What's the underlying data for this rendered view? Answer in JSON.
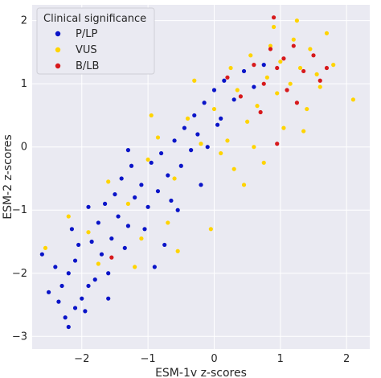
{
  "chart_data": {
    "type": "scatter",
    "title": "",
    "xlabel": "ESM-1v z-scores",
    "ylabel": "ESM-2 z-scores",
    "xlim": [
      -2.75,
      2.35
    ],
    "ylim": [
      -3.2,
      2.25
    ],
    "xticks": [
      -2,
      -1,
      0,
      1,
      2
    ],
    "yticks": [
      -3,
      -2,
      -1,
      0,
      1,
      2
    ],
    "xtick_labels": [
      "−2",
      "−1",
      "0",
      "1",
      "2"
    ],
    "ytick_labels": [
      "−3",
      "−2",
      "−1",
      "0",
      "1",
      "2"
    ],
    "grid": true,
    "background": "#eaeaf2",
    "legend": {
      "title": "Clinical significance",
      "placement": "top-left",
      "entries": [
        "P/LP",
        "VUS",
        "B/LB"
      ]
    },
    "series": [
      {
        "name": "P/LP",
        "color": "#0a14c8",
        "points": [
          [
            -2.5,
            -2.3
          ],
          [
            -2.35,
            -2.45
          ],
          [
            -2.25,
            -2.7
          ],
          [
            -2.2,
            -2.85
          ],
          [
            -2.1,
            -2.55
          ],
          [
            -2.3,
            -2.2
          ],
          [
            -2.2,
            -2.0
          ],
          [
            -2.4,
            -1.9
          ],
          [
            -2.1,
            -1.8
          ],
          [
            -2.0,
            -2.4
          ],
          [
            -1.9,
            -2.2
          ],
          [
            -1.95,
            -2.6
          ],
          [
            -1.8,
            -2.1
          ],
          [
            -1.7,
            -1.7
          ],
          [
            -1.6,
            -2.0
          ],
          [
            -1.85,
            -1.5
          ],
          [
            -2.05,
            -1.55
          ],
          [
            -1.75,
            -1.2
          ],
          [
            -1.55,
            -1.45
          ],
          [
            -1.65,
            -0.9
          ],
          [
            -1.45,
            -1.1
          ],
          [
            -1.35,
            -1.6
          ],
          [
            -1.3,
            -1.25
          ],
          [
            -1.2,
            -0.8
          ],
          [
            -1.5,
            -0.75
          ],
          [
            -1.4,
            -0.5
          ],
          [
            -1.25,
            -0.3
          ],
          [
            -1.1,
            -0.6
          ],
          [
            -1.0,
            -0.95
          ],
          [
            -0.95,
            -0.25
          ],
          [
            -1.05,
            -1.3
          ],
          [
            -0.85,
            -0.7
          ],
          [
            -0.8,
            -0.1
          ],
          [
            -0.7,
            -0.45
          ],
          [
            -0.6,
            0.1
          ],
          [
            -0.65,
            -0.85
          ],
          [
            -0.5,
            -0.3
          ],
          [
            -0.45,
            0.3
          ],
          [
            -0.35,
            -0.05
          ],
          [
            -0.3,
            0.5
          ],
          [
            -0.25,
            0.2
          ],
          [
            -0.15,
            0.7
          ],
          [
            -0.1,
            0.0
          ],
          [
            0.0,
            0.9
          ],
          [
            0.05,
            0.35
          ],
          [
            0.15,
            1.05
          ],
          [
            0.3,
            0.75
          ],
          [
            0.45,
            1.2
          ],
          [
            0.6,
            0.95
          ],
          [
            0.75,
            1.3
          ],
          [
            -0.75,
            -1.55
          ],
          [
            -0.55,
            -1.0
          ],
          [
            -0.9,
            -1.9
          ],
          [
            -1.6,
            -2.4
          ],
          [
            -2.6,
            -1.7
          ],
          [
            -2.15,
            -1.3
          ],
          [
            -1.9,
            -0.95
          ],
          [
            -1.3,
            -0.05
          ],
          [
            -0.2,
            -0.6
          ],
          [
            0.1,
            0.45
          ]
        ]
      },
      {
        "name": "VUS",
        "color": "#ffd400",
        "points": [
          [
            -2.55,
            -1.6
          ],
          [
            -2.2,
            -1.1
          ],
          [
            -1.9,
            -1.35
          ],
          [
            -1.6,
            -0.55
          ],
          [
            -1.3,
            -0.9
          ],
          [
            -1.0,
            -0.2
          ],
          [
            -0.85,
            0.15
          ],
          [
            -0.6,
            -0.5
          ],
          [
            -0.4,
            0.45
          ],
          [
            -0.2,
            0.05
          ],
          [
            0.0,
            0.6
          ],
          [
            0.1,
            -0.1
          ],
          [
            0.25,
            1.25
          ],
          [
            0.35,
            0.9
          ],
          [
            0.5,
            0.4
          ],
          [
            0.55,
            1.45
          ],
          [
            0.65,
            0.65
          ],
          [
            0.8,
            1.1
          ],
          [
            0.85,
            1.6
          ],
          [
            0.95,
            0.85
          ],
          [
            1.0,
            1.35
          ],
          [
            1.05,
            0.3
          ],
          [
            1.15,
            1.0
          ],
          [
            1.2,
            1.7
          ],
          [
            1.3,
            1.25
          ],
          [
            1.4,
            0.6
          ],
          [
            1.45,
            1.55
          ],
          [
            1.55,
            1.15
          ],
          [
            1.7,
            1.8
          ],
          [
            2.1,
            0.75
          ],
          [
            0.75,
            -0.25
          ],
          [
            0.45,
            -0.6
          ],
          [
            -0.05,
            -1.3
          ],
          [
            -0.55,
            -1.65
          ],
          [
            -1.2,
            -1.9
          ],
          [
            -0.3,
            1.05
          ],
          [
            0.2,
            0.1
          ],
          [
            0.6,
            0.0
          ],
          [
            1.35,
            0.25
          ],
          [
            1.8,
            1.3
          ],
          [
            1.25,
            2.0
          ],
          [
            0.9,
            1.9
          ],
          [
            1.6,
            0.95
          ],
          [
            -1.1,
            -1.45
          ],
          [
            -0.7,
            -1.2
          ],
          [
            -1.75,
            -1.85
          ],
          [
            -0.95,
            0.5
          ],
          [
            0.3,
            -0.35
          ]
        ]
      },
      {
        "name": "B/LB",
        "color": "#d7191c",
        "points": [
          [
            0.2,
            1.1
          ],
          [
            0.6,
            1.3
          ],
          [
            0.75,
            1.0
          ],
          [
            0.85,
            1.55
          ],
          [
            0.95,
            1.25
          ],
          [
            1.05,
            1.4
          ],
          [
            1.1,
            0.9
          ],
          [
            1.2,
            1.6
          ],
          [
            1.35,
            1.2
          ],
          [
            1.5,
            1.45
          ],
          [
            1.6,
            1.05
          ],
          [
            1.7,
            1.25
          ],
          [
            0.9,
            2.05
          ],
          [
            0.7,
            0.55
          ],
          [
            0.95,
            0.05
          ],
          [
            -1.55,
            -1.75
          ],
          [
            0.4,
            0.8
          ],
          [
            1.25,
            0.7
          ]
        ]
      }
    ]
  }
}
